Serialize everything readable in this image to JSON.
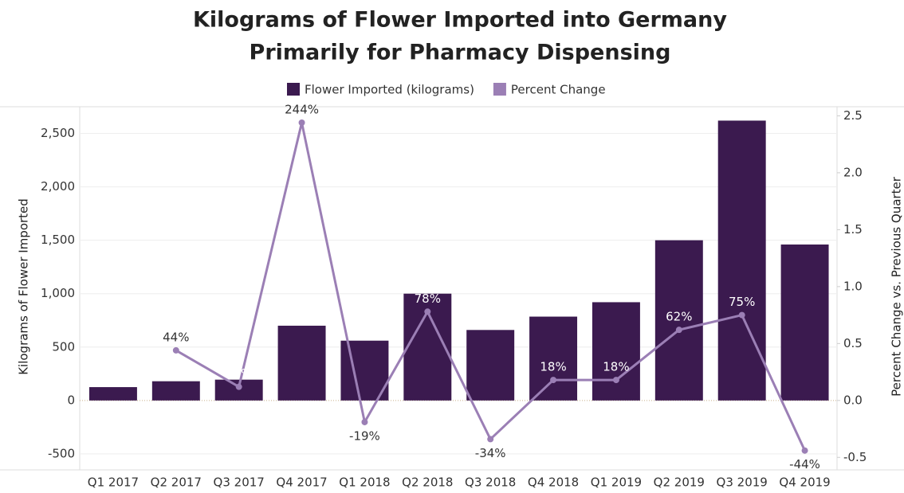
{
  "chart_data": {
    "type": "bar_line",
    "title": [
      "Kilograms of Flower Imported into Germany",
      "Primarily for Pharmacy Dispensing"
    ],
    "y_label": "Kilograms of Flower Imported",
    "y2_label": "Percent Change vs. Previous Quarter",
    "categories": [
      "Q1 2017",
      "Q2 2017",
      "Q3 2017",
      "Q4 2017",
      "Q1 2018",
      "Q2 2018",
      "Q3 2018",
      "Q4 2018",
      "Q1 2019",
      "Q2 2019",
      "Q3 2019",
      "Q4 2019"
    ],
    "series": [
      {
        "name": "Flower Imported (kilograms)",
        "color": "#3b1a4f",
        "type": "bar",
        "values": [
          125,
          180,
          195,
          700,
          560,
          1000,
          660,
          785,
          920,
          1500,
          2620,
          1460
        ]
      },
      {
        "name": "Percent Change",
        "color": "#9b7fb5",
        "type": "line",
        "axis": "y2",
        "values": [
          null,
          0.44,
          0.12,
          2.44,
          -0.19,
          0.78,
          -0.34,
          0.18,
          0.18,
          0.62,
          0.75,
          -0.44
        ],
        "value_labels": [
          null,
          "44%",
          "12%",
          "244%",
          "-19%",
          "78%",
          "-34%",
          "18%",
          "18%",
          "62%",
          "75%",
          "-44%"
        ]
      }
    ],
    "ylim": [
      -650,
      2750
    ],
    "yticks": [
      -500,
      0,
      {
        "value": 500,
        "label": "500"
      },
      {
        "value": 1000,
        "label": "1,000"
      },
      {
        "value": 1500,
        "label": "1,500"
      },
      {
        "value": 2000,
        "label": "2,000"
      },
      {
        "value": 2500,
        "label": "2,500"
      }
    ],
    "y2lim": [
      -0.61,
      2.58
    ],
    "y2ticks": [
      -0.5,
      {
        "value": 0,
        "label": "0.0"
      },
      0.5,
      {
        "value": 1,
        "label": "1.0"
      },
      1.5,
      {
        "value": 2,
        "label": "2.0"
      },
      2.5
    ],
    "grid": true
  }
}
